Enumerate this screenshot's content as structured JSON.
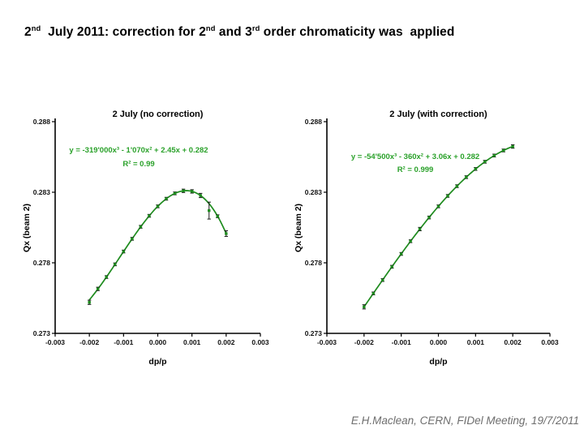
{
  "slide": {
    "title": {
      "seg1": "2",
      "sup1": "nd",
      "seg2": "  July 2011: correction for 2",
      "sup2": "nd",
      "seg3": " and 3",
      "sup3": "rd",
      "seg4": " order chromaticity was  applied"
    },
    "footer": "E.H.Maclean, CERN, FIDel Meeting, 19/7/2011"
  },
  "colors": {
    "curve": "#1e8c1e",
    "marker": "#1e8c1e",
    "equation_text": "#2aa12a",
    "axis": "#000000",
    "tick_text": "#111111",
    "chart_text": "#000000",
    "error_bar": "#1a1a1a",
    "footer_text": "#6e6e6e",
    "background": "#ffffff"
  },
  "chart_data": [
    {
      "type": "scatter",
      "title": "2 July (no correction)",
      "equation": "y = -319'000x³ - 1'070x² + 2.45x + 0.282",
      "r_squared": "R² = 0.99",
      "xlabel": "dp/p",
      "ylabel": "Qx (beam 2)",
      "xlim": [
        -0.003,
        0.003
      ],
      "ylim": [
        0.273,
        0.288
      ],
      "x_ticks": [
        "-0.003",
        "-0.002",
        "-0.001",
        "0.000",
        "0.001",
        "0.002",
        "0.003"
      ],
      "y_ticks": [
        "0.273",
        "0.278",
        "0.283",
        "0.288"
      ],
      "legend_position": "none",
      "grid": false,
      "fit": {
        "a3": -319000,
        "a2": -1070,
        "a1": 2.45,
        "a0": 0.282
      },
      "x": [
        -0.002,
        -0.00175,
        -0.0015,
        -0.00125,
        -0.001,
        -0.00075,
        -0.0005,
        -0.00025,
        0.0,
        0.00025,
        0.0005,
        0.00075,
        0.001,
        0.00125,
        0.0015,
        0.00175,
        0.002
      ],
      "y": [
        0.2752,
        0.27615,
        0.27699,
        0.27789,
        0.2788,
        0.2797,
        0.28055,
        0.28133,
        0.282,
        0.28254,
        0.28292,
        0.2831,
        0.28306,
        0.28277,
        0.2817,
        0.2813,
        0.28007
      ],
      "yerr": [
        0.00015,
        0.00012,
        0.0001,
        0.0001,
        0.0001,
        0.0001,
        0.0001,
        0.0001,
        0.0001,
        0.0001,
        0.0001,
        0.00012,
        0.00012,
        0.00015,
        0.0006,
        0.0001,
        0.0002
      ]
    },
    {
      "type": "scatter",
      "title": "2 July (with correction)",
      "equation": "y = -54'500x³ - 360x² + 3.06x + 0.282",
      "r_squared": "R² = 0.999",
      "xlabel": "dp/p",
      "ylabel": "Qx (beam 2)",
      "xlim": [
        -0.003,
        0.003
      ],
      "ylim": [
        0.273,
        0.288
      ],
      "x_ticks": [
        "-0.003",
        "-0.002",
        "-0.001",
        "0.000",
        "0.001",
        "0.002",
        "0.003"
      ],
      "y_ticks": [
        "0.273",
        "0.278",
        "0.283",
        "0.288"
      ],
      "legend_position": "none",
      "grid": false,
      "fit": {
        "a3": -54500,
        "a2": -360,
        "a1": 3.06,
        "a0": 0.282
      },
      "x": [
        -0.002,
        -0.00175,
        -0.0015,
        -0.00125,
        -0.001,
        -0.00075,
        -0.0005,
        -0.00025,
        0.0,
        0.00025,
        0.0005,
        0.00075,
        0.001,
        0.00125,
        0.0015,
        0.00175,
        0.002
      ],
      "y": [
        0.27488,
        0.27583,
        0.27678,
        0.27772,
        0.27863,
        0.27953,
        0.28039,
        0.28121,
        0.282,
        0.28274,
        0.28343,
        0.28407,
        0.28465,
        0.28516,
        0.2856,
        0.28596,
        0.28624
      ],
      "yerr": [
        0.00015,
        0.0001,
        0.0001,
        0.0001,
        0.0001,
        0.0001,
        0.00012,
        0.0001,
        0.0001,
        0.0001,
        0.0001,
        0.0001,
        0.0001,
        0.0001,
        0.0001,
        0.0001,
        0.00012
      ]
    }
  ]
}
